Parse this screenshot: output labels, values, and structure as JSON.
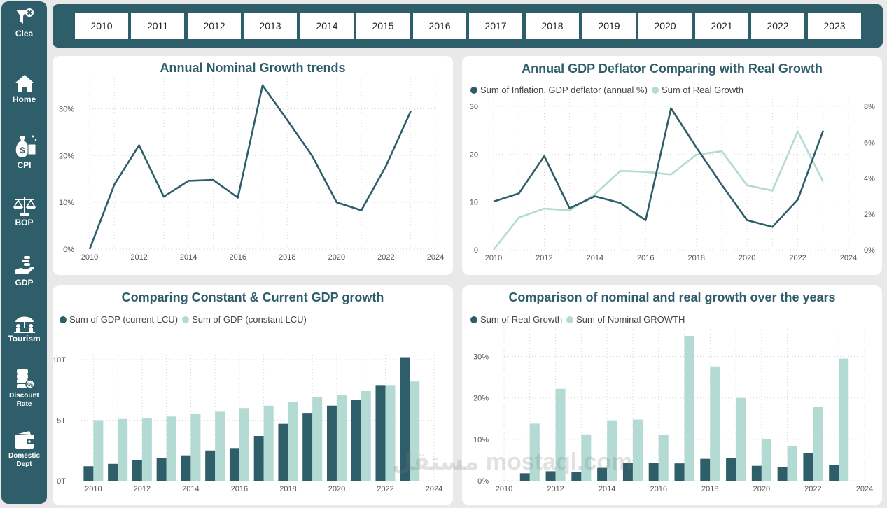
{
  "sidebar": {
    "items": [
      {
        "label": "Clea",
        "icon": "funnel-clear-icon"
      },
      {
        "label": "Home",
        "icon": "home-icon"
      },
      {
        "label": "CPI",
        "icon": "money-bag-icon"
      },
      {
        "label": "BOP",
        "icon": "scales-icon"
      },
      {
        "label": "GDP",
        "icon": "hand-coins-icon"
      },
      {
        "label": "Tourism",
        "icon": "tourism-icon"
      },
      {
        "label": "Discount Rate",
        "label1": "Discount",
        "label2": "Rate",
        "icon": "coins-percent-icon"
      },
      {
        "label": "Domestic Dept",
        "label1": "Domestic",
        "label2": "Dept",
        "icon": "wallet-icon"
      }
    ]
  },
  "years": [
    "2010",
    "2011",
    "2012",
    "2013",
    "2014",
    "2015",
    "2016",
    "2017",
    "2018",
    "2019",
    "2020",
    "2021",
    "2022",
    "2023"
  ],
  "colors": {
    "dark": "#2e5e6a",
    "light": "#b3dbd4",
    "sidebar": "#2e5e6a"
  },
  "watermark": "مستقل mostaql.com",
  "chart_data": [
    {
      "id": "nominal",
      "type": "line",
      "title": "Annual Nominal Growth trends",
      "x": [
        2010,
        2011,
        2012,
        2013,
        2014,
        2015,
        2016,
        2017,
        2018,
        2019,
        2020,
        2021,
        2022,
        2023
      ],
      "series": [
        {
          "values": [
            0,
            13.8,
            22.2,
            11.2,
            14.6,
            14.8,
            11.0,
            35.0,
            27.6,
            20.0,
            10.0,
            8.3,
            17.8,
            29.5
          ]
        }
      ],
      "xlim": [
        2010,
        2024
      ],
      "xticks": [
        "2010",
        "2012",
        "2014",
        "2016",
        "2018",
        "2020",
        "2022",
        "2024"
      ],
      "ylim": [
        0,
        35
      ],
      "yticks": [
        "0%",
        "10%",
        "20%",
        "30%"
      ],
      "grid": true
    },
    {
      "id": "deflator",
      "type": "line",
      "title": "Annual GDP Deflator Comparing with Real Growth",
      "legend": [
        "Sum of Inflation, GDP deflator (annual %)",
        "Sum of Real Growth"
      ],
      "x": [
        2010,
        2011,
        2012,
        2013,
        2014,
        2015,
        2016,
        2017,
        2018,
        2019,
        2020,
        2021,
        2022,
        2023
      ],
      "series": [
        {
          "name": "Sum of Inflation, GDP deflator (annual %)",
          "axis": "left",
          "values": [
            10.1,
            11.8,
            19.6,
            8.7,
            11.2,
            9.8,
            6.2,
            29.6,
            21.4,
            13.6,
            6.2,
            4.8,
            10.5,
            24.9
          ]
        },
        {
          "name": "Sum of Real Growth",
          "axis": "right",
          "values": [
            0,
            1.8,
            2.3,
            2.2,
            3.1,
            4.4,
            4.35,
            4.2,
            5.3,
            5.5,
            3.6,
            3.3,
            6.6,
            3.8
          ]
        }
      ],
      "xlim": [
        2010,
        2024
      ],
      "xticks": [
        "2010",
        "2012",
        "2014",
        "2016",
        "2018",
        "2020",
        "2022",
        "2024"
      ],
      "ylim": [
        0,
        30
      ],
      "yticks": [
        "0",
        "10",
        "20",
        "30"
      ],
      "y2lim": [
        0,
        8
      ],
      "y2ticks": [
        "0%",
        "2%",
        "4%",
        "6%",
        "8%"
      ],
      "grid": true,
      "legend_position": "top-left"
    },
    {
      "id": "constant",
      "type": "bar",
      "title": "Comparing Constant & Current GDP growth",
      "legend": [
        "Sum of GDP (current LCU)",
        "Sum of GDP (constant LCU)"
      ],
      "x": [
        2010,
        2011,
        2012,
        2013,
        2014,
        2015,
        2016,
        2017,
        2018,
        2019,
        2020,
        2021,
        2022,
        2023
      ],
      "series": [
        {
          "name": "Sum of GDP (current LCU)",
          "values": [
            1.2,
            1.4,
            1.7,
            1.9,
            2.1,
            2.5,
            2.7,
            3.7,
            4.7,
            5.6,
            6.2,
            6.7,
            7.9,
            10.2
          ]
        },
        {
          "name": "Sum of GDP (constant LCU)",
          "values": [
            5.0,
            5.1,
            5.2,
            5.3,
            5.5,
            5.7,
            6.0,
            6.2,
            6.5,
            6.9,
            7.1,
            7.4,
            7.9,
            8.2
          ]
        }
      ],
      "xlim": [
        2009.5,
        2024
      ],
      "xticks": [
        "2010",
        "2012",
        "2014",
        "2016",
        "2018",
        "2020",
        "2022",
        "2024"
      ],
      "ylim": [
        0,
        10
      ],
      "yticks": [
        "0T",
        "5T",
        "10T"
      ],
      "grid": true,
      "legend_position": "top-left"
    },
    {
      "id": "comparison",
      "type": "bar",
      "title": "Comparison of nominal and real growth over the years",
      "legend": [
        "Sum of Real Growth",
        "Sum of Nominal GROWTH"
      ],
      "x": [
        2010,
        2011,
        2012,
        2013,
        2014,
        2015,
        2016,
        2017,
        2018,
        2019,
        2020,
        2021,
        2022,
        2023
      ],
      "series": [
        {
          "name": "Sum of Real Growth",
          "values": [
            0,
            1.8,
            2.3,
            2.2,
            3.1,
            4.4,
            4.35,
            4.2,
            5.3,
            5.5,
            3.6,
            3.3,
            6.6,
            3.8
          ]
        },
        {
          "name": "Sum of Nominal GROWTH",
          "values": [
            0,
            13.8,
            22.2,
            11.2,
            14.6,
            14.8,
            11.0,
            35.0,
            27.6,
            20.0,
            10.0,
            8.3,
            17.8,
            29.5
          ]
        }
      ],
      "xlim": [
        2010,
        2024
      ],
      "xticks": [
        "2010",
        "2012",
        "2014",
        "2016",
        "2018",
        "2020",
        "2022",
        "2024"
      ],
      "ylim": [
        0,
        35
      ],
      "yticks": [
        "0%",
        "10%",
        "20%",
        "30%"
      ],
      "grid": true,
      "legend_position": "top-left"
    }
  ]
}
